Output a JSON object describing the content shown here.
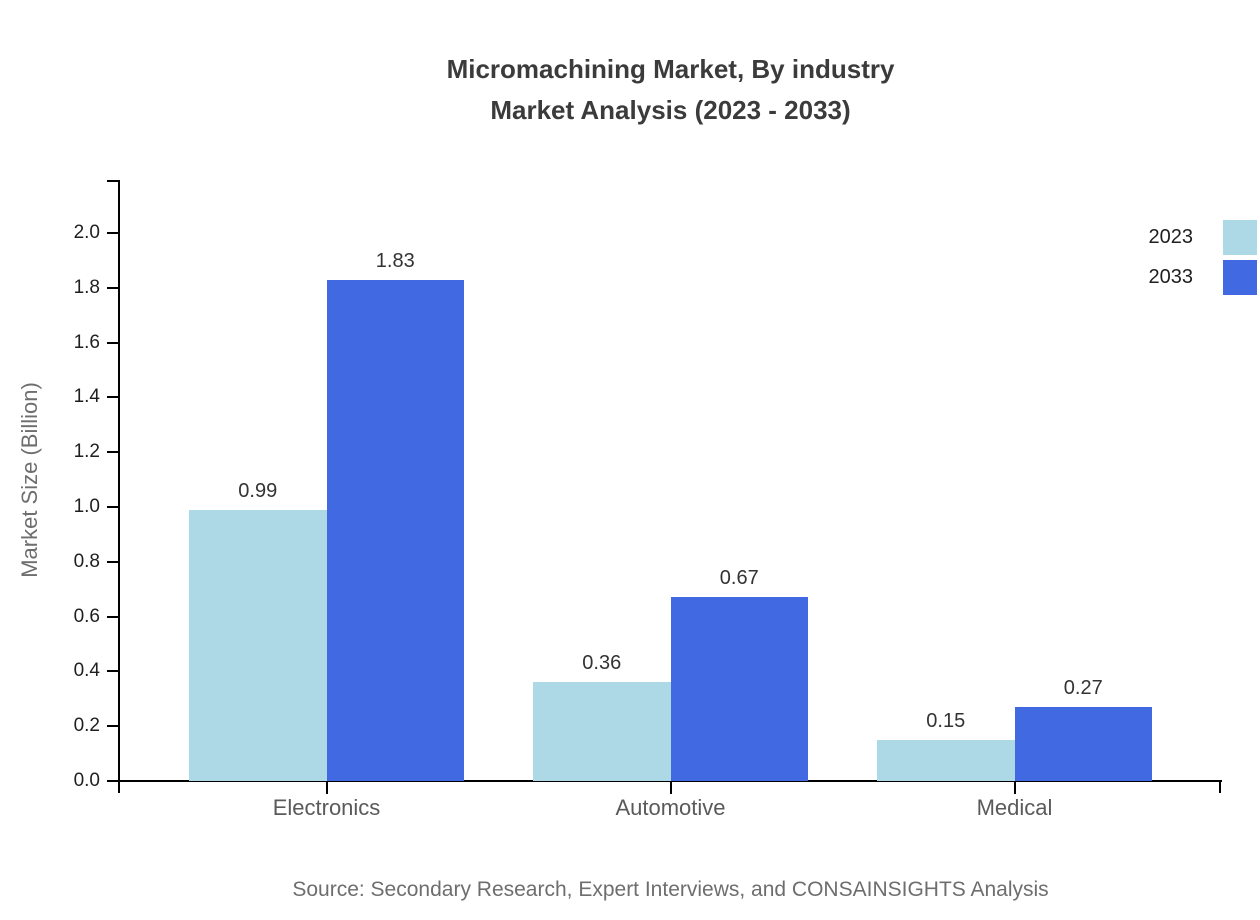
{
  "title": {
    "line1": "Micromachining Market, By industry",
    "line2": "Market Analysis (2023 - 2033)"
  },
  "source": "Source: Secondary Research, Expert Interviews, and CONSAINSIGHTS Analysis",
  "chart_data": {
    "type": "bar",
    "title": "Micromachining Market, By industry Market Analysis (2023 - 2033)",
    "categories": [
      "Electronics",
      "Automotive",
      "Medical"
    ],
    "series": [
      {
        "name": "2023",
        "color": "#ADD8E6",
        "values": [
          0.99,
          0.36,
          0.15
        ]
      },
      {
        "name": "2033",
        "color": "#4169E1",
        "values": [
          1.83,
          0.67,
          0.27
        ]
      }
    ],
    "xlabel": "",
    "ylabel": "Market Size (Billion)",
    "ylim": [
      0,
      2.2
    ],
    "yticks": [
      0.0,
      0.2,
      0.4,
      0.6,
      0.8,
      1.0,
      1.2,
      1.4,
      1.6,
      1.8,
      2.0
    ],
    "grid": false,
    "legend_position": "top-right",
    "value_labels": true,
    "axis_color": "#000000",
    "tick_label_color": "#1f1f1f",
    "category_label_color": "#5a5a5a",
    "value_label_color": "#333333",
    "title_color": "#3b3b3b",
    "muted_text_color": "#6e6e6e"
  }
}
